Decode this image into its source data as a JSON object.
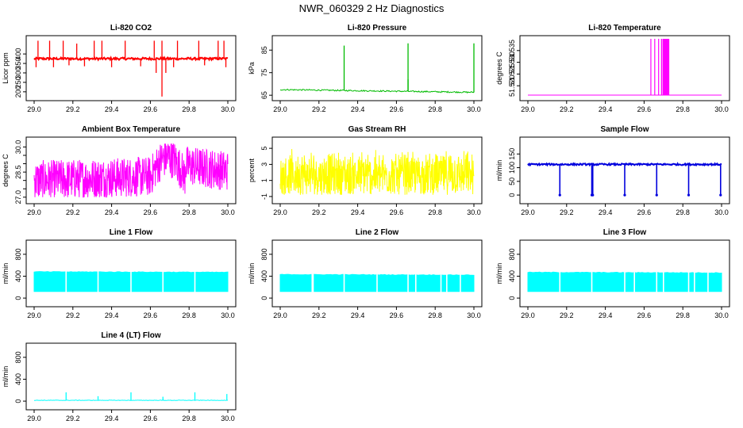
{
  "title": "NWR_060329  2 Hz Diagnostics",
  "chart_data": [
    {
      "id": "co2",
      "type": "line",
      "title": "Li-820 CO2",
      "ylabel": "Licor ppm",
      "color": "#ff0000",
      "xlim": [
        29.0,
        30.0
      ],
      "ylim": [
        170,
        480
      ],
      "xticks": [
        "29.0",
        "29.2",
        "29.4",
        "29.6",
        "29.8",
        "30.0"
      ],
      "yticks": [
        200,
        250,
        300,
        350,
        400
      ],
      "baseline": 375,
      "noise": 6,
      "spikes_up": [
        [
          29.02,
          470
        ],
        [
          29.08,
          470
        ],
        [
          29.15,
          470
        ],
        [
          29.22,
          455
        ],
        [
          29.31,
          470
        ],
        [
          29.35,
          470
        ],
        [
          29.47,
          470
        ],
        [
          29.62,
          470
        ],
        [
          29.66,
          470
        ],
        [
          29.74,
          470
        ],
        [
          29.85,
          470
        ],
        [
          29.95,
          470
        ],
        [
          29.98,
          470
        ]
      ],
      "spikes_down": [
        [
          29.01,
          330
        ],
        [
          29.1,
          330
        ],
        [
          29.18,
          340
        ],
        [
          29.26,
          335
        ],
        [
          29.4,
          330
        ],
        [
          29.55,
          335
        ],
        [
          29.63,
          300
        ],
        [
          29.66,
          175
        ],
        [
          29.68,
          300
        ],
        [
          29.72,
          330
        ],
        [
          29.88,
          340
        ],
        [
          29.99,
          330
        ]
      ]
    },
    {
      "id": "press",
      "type": "line",
      "title": "Li-820 Pressure",
      "ylabel": "kPa",
      "color": "#00bb00",
      "xlim": [
        29.0,
        30.0
      ],
      "ylim": [
        64,
        90
      ],
      "xticks": [
        "29.0",
        "29.2",
        "29.4",
        "29.6",
        "29.8",
        "30.0"
      ],
      "yticks": [
        65,
        75,
        85
      ],
      "start": 67.5,
      "end": 66.3,
      "noise": 0.3,
      "spikes_up": [
        [
          29.33,
          87
        ],
        [
          29.66,
          88
        ],
        [
          29.66,
          72
        ],
        [
          30.0,
          88
        ]
      ],
      "spikes_down": []
    },
    {
      "id": "temp",
      "type": "line",
      "title": "Li-820 Temperature",
      "ylabel": "degrees C",
      "color": "#ff00ff",
      "xlim": [
        29.0,
        30.0
      ],
      "ylim": [
        51.515,
        51.54
      ],
      "xticks": [
        "29.0",
        "29.2",
        "29.4",
        "29.6",
        "29.8",
        "30.0"
      ],
      "yticks": [
        51.52,
        51.525,
        51.53,
        51.535
      ],
      "baseline": 51.516,
      "block": [
        29.695,
        29.73
      ],
      "spikes_up": [
        [
          29.635,
          51.54
        ],
        [
          29.655,
          51.54
        ],
        [
          29.675,
          51.54
        ],
        [
          29.69,
          51.54
        ]
      ],
      "spikes_down": []
    },
    {
      "id": "box",
      "type": "line",
      "title": "Ambient Box Temperature",
      "ylabel": "degrees C",
      "color": "#ff00ff",
      "xlim": [
        29.0,
        30.0
      ],
      "ylim": [
        26.8,
        30.4
      ],
      "xticks": [
        "29.0",
        "29.2",
        "29.4",
        "29.6",
        "29.8",
        "30.0"
      ],
      "yticks": [
        27.0,
        28.5,
        30.0
      ],
      "yminor": [
        27.0,
        27.5,
        28.0,
        28.5,
        29.0,
        29.5,
        30.0
      ],
      "band": "box"
    },
    {
      "id": "rh",
      "type": "line",
      "title": "Gas Stream RH",
      "ylabel": "percent",
      "color": "#ffff00",
      "xlim": [
        29.0,
        30.0
      ],
      "ylim": [
        -1.5,
        6.0
      ],
      "xticks": [
        "29.0",
        "29.2",
        "29.4",
        "29.6",
        "29.8",
        "30.0"
      ],
      "yticks": [
        -1,
        1,
        3,
        5
      ],
      "band": "rh"
    },
    {
      "id": "sample",
      "type": "line",
      "title": "Sample Flow",
      "ylabel": "ml/min",
      "color": "#0000dd",
      "xlim": [
        29.0,
        30.0
      ],
      "ylim": [
        -20,
        200
      ],
      "xticks": [
        "29.0",
        "29.2",
        "29.4",
        "29.6",
        "29.8",
        "30.0"
      ],
      "yticks": [
        0,
        50,
        100,
        150
      ],
      "baseline": 112,
      "noise": 3,
      "dips": [
        [
          29.165,
          0
        ],
        [
          29.33,
          0
        ],
        [
          29.335,
          0
        ],
        [
          29.5,
          0
        ],
        [
          29.665,
          0
        ],
        [
          29.83,
          0
        ],
        [
          29.995,
          0
        ]
      ]
    },
    {
      "id": "l1",
      "type": "area",
      "title": "Line 1 Flow",
      "ylabel": "ml/min",
      "color": "#00ffff",
      "xlim": [
        29.0,
        30.0
      ],
      "ylim": [
        -100,
        1000
      ],
      "xticks": [
        "29.0",
        "29.2",
        "29.4",
        "29.6",
        "29.8",
        "30.0"
      ],
      "yticks": [
        0,
        400,
        800
      ],
      "low": 120,
      "high": [
        480,
        470
      ],
      "gaps": [
        29.165,
        29.33,
        29.5,
        29.665,
        29.83
      ]
    },
    {
      "id": "l2",
      "type": "area",
      "title": "Line 2 Flow",
      "ylabel": "ml/min",
      "color": "#00ffff",
      "xlim": [
        29.0,
        30.0
      ],
      "ylim": [
        -100,
        1000
      ],
      "xticks": [
        "29.0",
        "29.2",
        "29.4",
        "29.6",
        "29.8",
        "30.0"
      ],
      "yticks": [
        0,
        400,
        800
      ],
      "low": 120,
      "high": [
        430,
        420
      ],
      "gaps": [
        29.165,
        29.17,
        29.33,
        29.5,
        29.66,
        29.7,
        29.83,
        29.86,
        29.93
      ]
    },
    {
      "id": "l3",
      "type": "area",
      "title": "Line 3 Flow",
      "ylabel": "ml/min",
      "color": "#00ffff",
      "xlim": [
        29.0,
        30.0
      ],
      "ylim": [
        -100,
        1000
      ],
      "xticks": [
        "29.0",
        "29.2",
        "29.4",
        "29.6",
        "29.8",
        "30.0"
      ],
      "yticks": [
        0,
        400,
        800
      ],
      "low": 120,
      "high": [
        470,
        460
      ],
      "gaps": [
        29.165,
        29.33,
        29.5,
        29.55,
        29.665,
        29.7,
        29.83,
        29.86,
        29.93
      ]
    },
    {
      "id": "l4",
      "type": "line",
      "title": "Line 4 (LT) Flow",
      "ylabel": "ml/min",
      "color": "#00ffff",
      "xlim": [
        29.0,
        30.0
      ],
      "ylim": [
        -100,
        1000
      ],
      "xticks": [
        "29.0",
        "29.2",
        "29.4",
        "29.6",
        "29.8",
        "30.0"
      ],
      "yticks": [
        0,
        400,
        800
      ],
      "baseline": 15,
      "noise": 4,
      "spikes_up": [
        [
          29.165,
          160
        ],
        [
          29.33,
          90
        ],
        [
          29.5,
          160
        ],
        [
          29.665,
          80
        ],
        [
          29.83,
          160
        ],
        [
          29.995,
          130
        ]
      ],
      "spikes_down": []
    }
  ]
}
